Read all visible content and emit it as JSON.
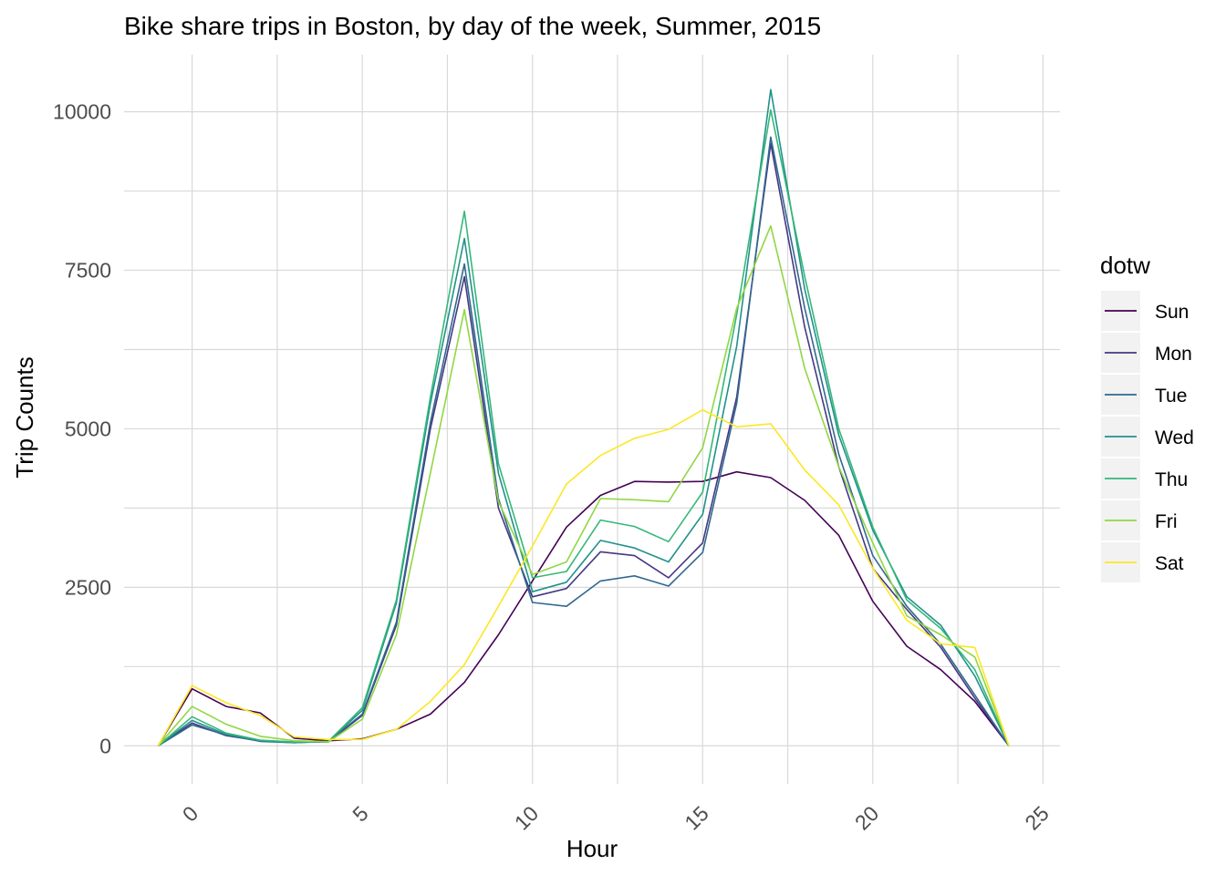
{
  "chart_data": {
    "type": "line",
    "title": "Bike share trips in Boston, by day of the week, Summer, 2015",
    "xlabel": "Hour",
    "ylabel": "Trip Counts",
    "xlim": [
      -2,
      25.5
    ],
    "ylim": [
      -600,
      10900
    ],
    "x_ticks": [
      0,
      5,
      10,
      15,
      20,
      25
    ],
    "y_ticks": [
      0,
      2500,
      5000,
      7500,
      10000
    ],
    "x_tick_labels": [
      "0",
      "5",
      "10",
      "15",
      "20",
      "25"
    ],
    "y_tick_labels": [
      "0",
      "2500",
      "5000",
      "7500",
      "10000"
    ],
    "grid": true,
    "legend": {
      "title": "dotw",
      "position": "right"
    },
    "x": [
      -1,
      0,
      1,
      2,
      3,
      4,
      5,
      6,
      7,
      8,
      9,
      10,
      11,
      12,
      13,
      14,
      15,
      16,
      17,
      18,
      19,
      20,
      21,
      22,
      23,
      24
    ],
    "series": [
      {
        "name": "Sun",
        "color": "#440154",
        "values": [
          0,
          900,
          620,
          520,
          120,
          80,
          110,
          260,
          500,
          1000,
          1750,
          2600,
          3450,
          3950,
          4170,
          4160,
          4170,
          4320,
          4230,
          3870,
          3320,
          2280,
          1570,
          1200,
          700,
          0
        ]
      },
      {
        "name": "Mon",
        "color": "#443983",
        "values": [
          0,
          360,
          160,
          80,
          60,
          60,
          480,
          1900,
          5000,
          7400,
          3750,
          2350,
          2480,
          3060,
          3000,
          2650,
          3200,
          5500,
          9500,
          6600,
          4400,
          2800,
          2150,
          1550,
          750,
          0
        ]
      },
      {
        "name": "Tue",
        "color": "#31688e",
        "values": [
          0,
          330,
          170,
          70,
          50,
          70,
          500,
          1950,
          5100,
          7600,
          3900,
          2260,
          2200,
          2600,
          2680,
          2520,
          3050,
          5400,
          9600,
          6900,
          4600,
          3000,
          2200,
          1600,
          800,
          0
        ]
      },
      {
        "name": "Wed",
        "color": "#21918c",
        "values": [
          0,
          400,
          180,
          80,
          50,
          70,
          560,
          2250,
          5400,
          8000,
          4300,
          2430,
          2580,
          3240,
          3120,
          2900,
          3650,
          6300,
          10350,
          7200,
          4900,
          3400,
          2350,
          1900,
          1100,
          0
        ]
      },
      {
        "name": "Thu",
        "color": "#35b779",
        "values": [
          0,
          460,
          200,
          90,
          60,
          70,
          600,
          2300,
          5500,
          8430,
          4450,
          2650,
          2750,
          3560,
          3460,
          3220,
          4000,
          6800,
          10030,
          7400,
          5000,
          3450,
          2300,
          1850,
          1200,
          0
        ]
      },
      {
        "name": "Fri",
        "color": "#90d743",
        "values": [
          0,
          620,
          340,
          150,
          80,
          60,
          420,
          1750,
          4300,
          6880,
          3850,
          2700,
          2900,
          3900,
          3880,
          3850,
          4700,
          6900,
          8200,
          5950,
          4400,
          3200,
          2050,
          1750,
          1400,
          0
        ]
      },
      {
        "name": "Sat",
        "color": "#fde725",
        "values": [
          0,
          950,
          680,
          480,
          140,
          100,
          100,
          260,
          700,
          1280,
          2200,
          3150,
          4130,
          4580,
          4850,
          4990,
          5300,
          5030,
          5080,
          4350,
          3800,
          2800,
          1980,
          1610,
          1550,
          0
        ]
      }
    ]
  }
}
